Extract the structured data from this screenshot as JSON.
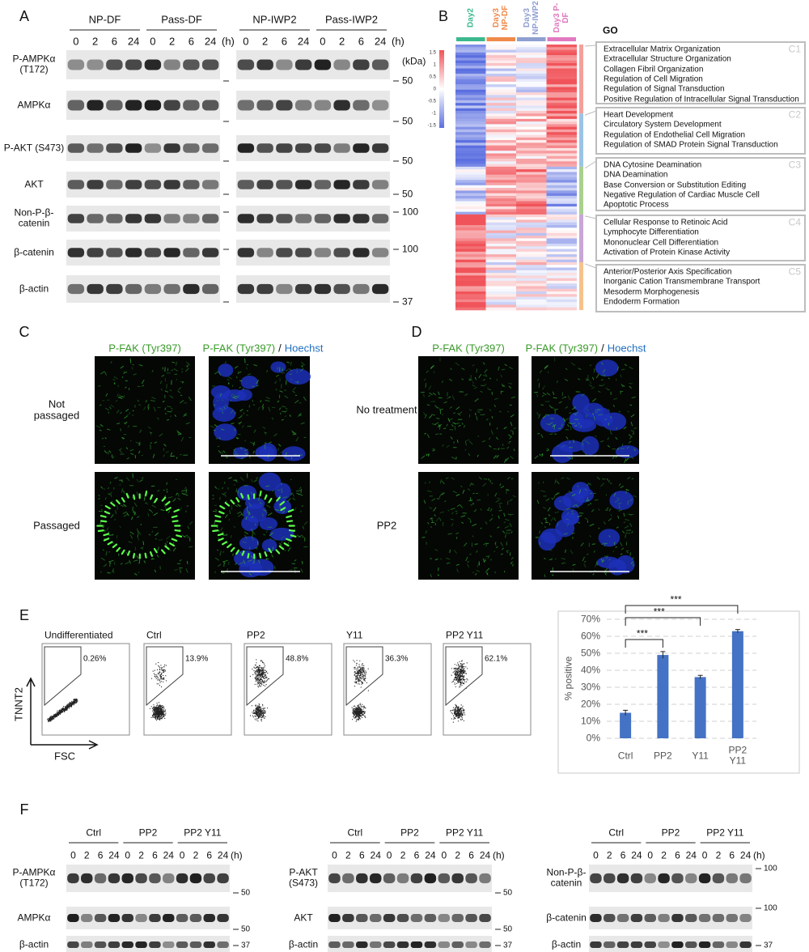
{
  "panel_a": {
    "label": "A",
    "groups": [
      "NP-DF",
      "Pass-DF",
      "NP-IWP2",
      "Pass-IWP2"
    ],
    "timepoints": [
      "0",
      "2",
      "6",
      "24"
    ],
    "time_unit": "(h)",
    "mw_unit": "(kDa)",
    "rows": [
      {
        "name": "P-AMPKα (T172)",
        "marker": 50
      },
      {
        "name": "AMPKα",
        "marker": 50
      },
      {
        "name": "P-AKT (S473)",
        "marker": 50
      },
      {
        "name": "AKT",
        "marker": 50
      },
      {
        "name": "Non-P-β-catenin",
        "marker": 100
      },
      {
        "name": "β-catenin",
        "marker": 100
      },
      {
        "name": "β-actin",
        "marker": 37
      }
    ]
  },
  "panel_b": {
    "label": "B",
    "columns": [
      {
        "name": "Day2",
        "color": "#3cb88e"
      },
      {
        "name": "Day3 NP-DF",
        "color": "#f08a4b"
      },
      {
        "name": "Day3 NP-IWP2",
        "color": "#8f9fd0"
      },
      {
        "name": "Day3 P-DF",
        "color": "#e07ac0"
      }
    ],
    "colorbar_ticks": [
      1.5,
      1,
      0.5,
      0,
      -0.5,
      -1,
      -1.5
    ],
    "go_title": "GO",
    "clusters": [
      {
        "id": "C1",
        "color": "#f4a09a",
        "terms": [
          "Extracellular Matrix Organization",
          "Extracellular Structure Organization",
          "Collagen Fibril Organization",
          "Regulation of Cell Migration",
          "Regulation of Signal Transduction",
          "Positive Regulation of Intracellular Signal Transduction"
        ]
      },
      {
        "id": "C2",
        "color": "#9cc3e6",
        "terms": [
          "Heart Development",
          "Circulatory System Development",
          "Regulation of Endothelial Cell Migration",
          "Regulation of SMAD Protein Signal Transduction"
        ]
      },
      {
        "id": "C3",
        "color": "#a9d18e",
        "terms": [
          "DNA Cytosine Deamination",
          "DNA Deamination",
          "Base Conversion or Substitution Editing",
          "Negative Regulation of Cardiac Muscle Cell",
          "Apoptotic Process"
        ]
      },
      {
        "id": "C4",
        "color": "#c9a6d6",
        "terms": [
          "Cellular Response to Retinoic Acid",
          "Lymphocyte Differentiation",
          "Mononuclear Cell Differentiation",
          "Activation of Protein Kinase Activity"
        ]
      },
      {
        "id": "C5",
        "color": "#f6c28b",
        "terms": [
          "Anterior/Posterior Axis Specification",
          "Inorganic Cation Transmembrane Transport",
          "Mesoderm Morphogenesis",
          "Endoderm Formation"
        ]
      }
    ]
  },
  "panel_c": {
    "label": "C",
    "stain": "P-FAK (Tyr397)",
    "separator": "/",
    "counterstain": "Hoechst",
    "rows": [
      "Not passaged",
      "Passaged"
    ]
  },
  "panel_d": {
    "label": "D",
    "stain": "P-FAK (Tyr397)",
    "separator": "/",
    "counterstain": "Hoechst",
    "rows": [
      "No treatment",
      "PP2"
    ]
  },
  "panel_e": {
    "label": "E",
    "y_axis": "TNNT2",
    "x_axis": "FSC",
    "flow_plots": [
      {
        "title": "Undifferentiated",
        "gate": "0.26%"
      },
      {
        "title": "Ctrl",
        "gate": "13.9%"
      },
      {
        "title": "PP2",
        "gate": "48.8%"
      },
      {
        "title": "Y11",
        "gate": "36.3%"
      },
      {
        "title": "PP2 Y11",
        "gate": "62.1%"
      }
    ]
  },
  "chart_data": {
    "type": "bar",
    "categories": [
      "Ctrl",
      "PP2",
      "Y11",
      "PP2 Y11"
    ],
    "values": [
      15,
      49,
      36,
      63
    ],
    "errors": [
      1.5,
      2,
      1,
      1
    ],
    "color": "#4472c4",
    "ylabel": "% positive",
    "ylim": [
      0,
      70
    ],
    "yticks": [
      {
        "value": 0,
        "label": "0%"
      },
      {
        "value": 10,
        "label": "10%"
      },
      {
        "value": 20,
        "label": "20%"
      },
      {
        "value": 30,
        "label": "30%"
      },
      {
        "value": 40,
        "label": "40%"
      },
      {
        "value": 50,
        "label": "50%"
      },
      {
        "value": 60,
        "label": "60%"
      },
      {
        "value": 70,
        "label": "70%"
      }
    ],
    "grid": true,
    "annotations": [
      "***",
      "***",
      "***"
    ]
  },
  "panel_f": {
    "label": "F",
    "groups": [
      "Ctrl",
      "PP2",
      "PP2 Y11"
    ],
    "timepoints": [
      "0",
      "2",
      "6",
      "24"
    ],
    "time_unit": "(h)",
    "blots": [
      {
        "rows": [
          {
            "name": "P-AMPKα (T172)",
            "marker": 50
          },
          {
            "name": "AMPKα",
            "marker": 50
          },
          {
            "name": "β-actin",
            "marker": 37
          }
        ]
      },
      {
        "rows": [
          {
            "name": "P-AKT (S473)",
            "marker": 50
          },
          {
            "name": "AKT",
            "marker": 50
          },
          {
            "name": "β-actin",
            "marker": 37
          }
        ]
      },
      {
        "rows": [
          {
            "name": "Non-P-β-catenin",
            "marker": 100
          },
          {
            "name": "β-catenin",
            "marker": 100
          },
          {
            "name": "β-actin",
            "marker": 37
          }
        ]
      }
    ]
  }
}
